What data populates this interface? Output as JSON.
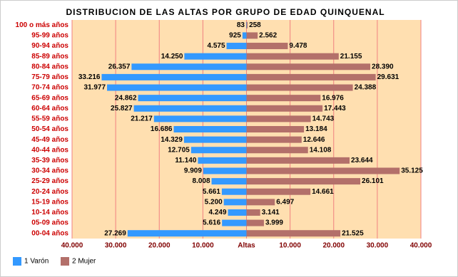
{
  "chart_data": {
    "type": "pyramid",
    "title": "DISTRIBUCION DE LAS ALTAS POR GRUPO DE EDAD QUINQUENAL",
    "categories": [
      "100 o más años",
      "95-99 años",
      "90-94 años",
      "85-89 años",
      "80-84 años",
      "75-79 años",
      "70-74 años",
      "65-69 años",
      "60-64 años",
      "55-59 años",
      "50-54 años",
      "45-49 años",
      "40-44 años",
      "35-39 años",
      "30-34 años",
      "25-29 años",
      "20-24 años",
      "15-19 años",
      "10-14 años",
      "05-09 años",
      "00-04 años"
    ],
    "series": [
      {
        "name": "1 Varón",
        "color": "#3399ff",
        "values": [
          83,
          925,
          4575,
          14250,
          26357,
          33216,
          31977,
          24862,
          25827,
          21217,
          16686,
          14329,
          12705,
          11140,
          9909,
          8008,
          5661,
          5200,
          4249,
          5616,
          27269
        ],
        "value_labels": [
          "83",
          "925",
          "4.575",
          "14.250",
          "26.357",
          "33.216",
          "31.977",
          "24.862",
          "25.827",
          "21.217",
          "16.686",
          "14.329",
          "12.705",
          "11.140",
          "9.909",
          "8.008",
          "5.661",
          "5.200",
          "4.249",
          "5.616",
          "27.269"
        ]
      },
      {
        "name": "2 Mujer",
        "color": "#b3706a",
        "values": [
          258,
          2562,
          9478,
          21155,
          28390,
          29631,
          24388,
          16976,
          17443,
          14743,
          13184,
          12646,
          14108,
          23644,
          35125,
          26101,
          14661,
          6497,
          3141,
          3999,
          21525
        ],
        "value_labels": [
          "258",
          "2.562",
          "9.478",
          "21.155",
          "28.390",
          "29.631",
          "24.388",
          "16.976",
          "17.443",
          "14.743",
          "13.184",
          "12.646",
          "14.108",
          "23.644",
          "35.125",
          "26.101",
          "14.661",
          "6.497",
          "3.141",
          "3.999",
          "21.525"
        ]
      }
    ],
    "xlim": [
      -40000,
      40000
    ],
    "xticks": [
      {
        "value": -40000,
        "label": "40.000"
      },
      {
        "value": -30000,
        "label": "30.000"
      },
      {
        "value": -20000,
        "label": "20.000"
      },
      {
        "value": -10000,
        "label": "10.000"
      },
      {
        "value": 0,
        "label": "Altas"
      },
      {
        "value": 10000,
        "label": "10.000"
      },
      {
        "value": 20000,
        "label": "20.000"
      },
      {
        "value": 30000,
        "label": "30.000"
      },
      {
        "value": 40000,
        "label": "40.000"
      }
    ],
    "grid": true
  }
}
